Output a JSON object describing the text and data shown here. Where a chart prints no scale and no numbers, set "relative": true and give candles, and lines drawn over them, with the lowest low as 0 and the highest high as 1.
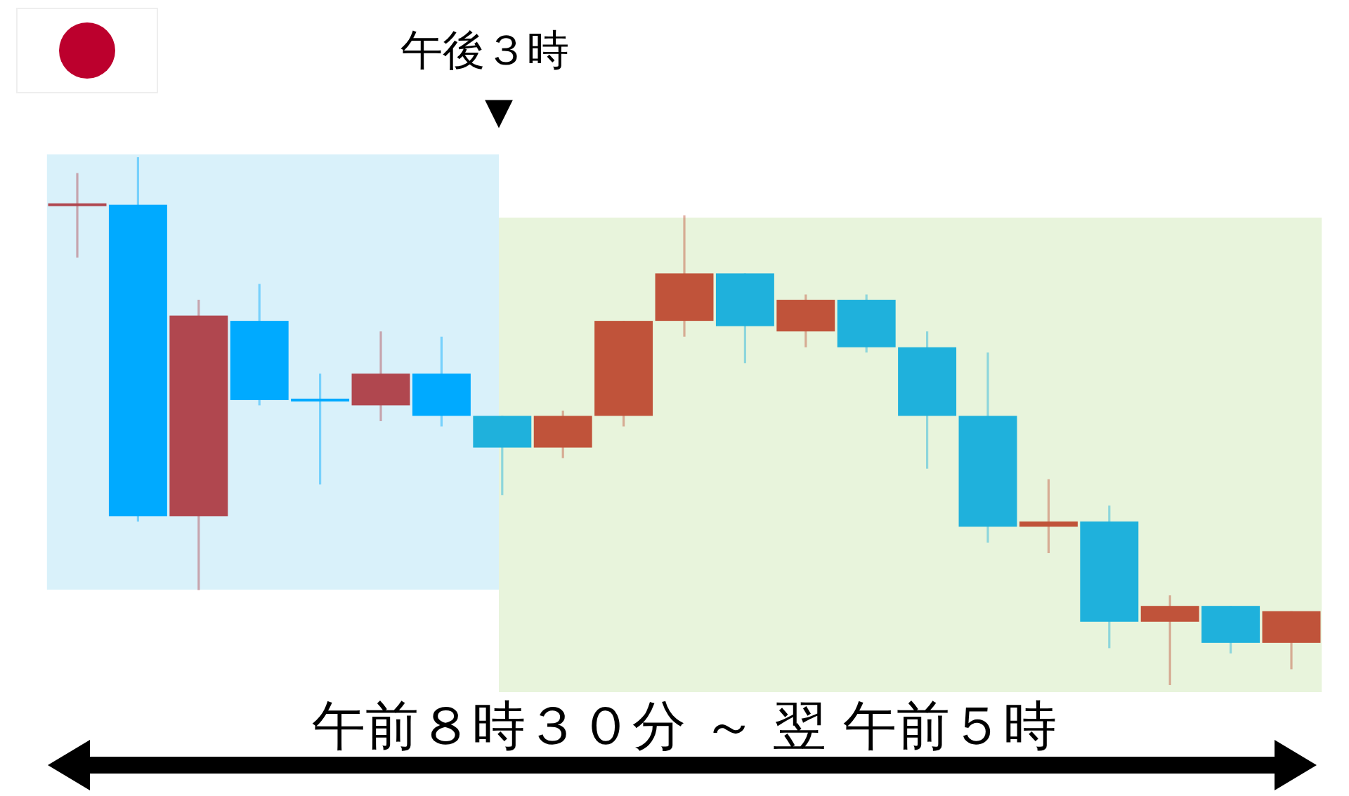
{
  "chart_data": {
    "type": "candlestick",
    "categories": [
      null,
      null,
      null,
      null,
      null,
      null,
      null,
      null,
      null,
      null,
      null,
      null,
      null,
      null,
      null,
      null,
      null,
      null,
      null,
      null,
      null
    ],
    "relative": true,
    "xlabel": "午前８時３０分 ～ 翌 午前５時",
    "annotations": [
      "午後３時",
      "▼"
    ],
    "ohlc": [
      [
        0.91,
        0.97,
        0.81,
        0.91
      ],
      [
        0.91,
        1,
        0.31,
        0.32
      ],
      [
        0.32,
        0.73,
        0.18,
        0.7
      ],
      [
        0.69,
        0.76,
        0.53,
        0.54
      ],
      [
        0.54,
        0.59,
        0.38,
        0.54
      ],
      [
        0.53,
        0.67,
        0.5,
        0.59
      ],
      [
        0.59,
        0.66,
        0.49,
        0.51
      ],
      [
        0.51,
        0.51,
        0.36,
        0.45
      ],
      [
        0.45,
        0.52,
        0.43,
        0.51
      ],
      [
        0.51,
        0.69,
        0.49,
        0.69
      ],
      [
        0.69,
        0.89,
        0.66,
        0.78
      ],
      [
        0.78,
        0.78,
        0.61,
        0.68
      ],
      [
        0.67,
        0.74,
        0.64,
        0.73
      ],
      [
        0.73,
        0.74,
        0.63,
        0.64
      ],
      [
        0.64,
        0.67,
        0.41,
        0.51
      ],
      [
        0.51,
        0.63,
        0.27,
        0.3
      ],
      [
        0.3,
        0.39,
        0.25,
        0.31
      ],
      [
        0.31,
        0.34,
        0.07,
        0.12
      ],
      [
        0.12,
        0.17,
        0,
        0.15
      ],
      [
        0.15,
        0.15,
        0.06,
        0.08
      ],
      [
        0.08,
        0.14,
        0.03,
        0.14
      ]
    ],
    "colors": [
      "#b0474f",
      "#00aaff",
      "#b0474f",
      "#00aaff",
      "#00aaff",
      "#b0474f",
      "#00aaff",
      "#1fb1dc",
      "#c0533a",
      "#c0533a",
      "#c0533a",
      "#1fb1dc",
      "#c0533a",
      "#1fb1dc",
      "#1fb1dc",
      "#1fb1dc",
      "#c0533a",
      "#1fb1dc",
      "#c0533a",
      "#1fb1dc",
      "#c0533a"
    ]
  }
}
